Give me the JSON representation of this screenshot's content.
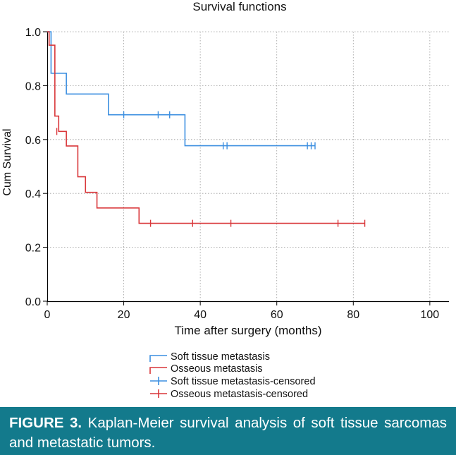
{
  "figure": {
    "label": "FIGURE 3.",
    "text": "Kaplan-Meier survival analysis of soft tissue sarcomas and metastatic tumors."
  },
  "colors": {
    "soft": "#3c8fe0",
    "osseous": "#d9373a",
    "caption_bg": "#137a8c"
  },
  "chart_data": {
    "type": "line",
    "title": "Survival functions",
    "xlabel": "Time after surgery (months)",
    "ylabel": "Cum Survival",
    "xlim": [
      0,
      105
    ],
    "ylim": [
      0,
      1.0
    ],
    "xticks": [
      0,
      20,
      40,
      60,
      80,
      100
    ],
    "yticks": [
      0.0,
      0.2,
      0.4,
      0.6,
      0.8,
      1.0
    ],
    "xtick_labels": [
      "0",
      "20",
      "40",
      "60",
      "80",
      "100"
    ],
    "ytick_labels": [
      "0.0",
      "0.2",
      "0.4",
      "0.6",
      "0.8",
      "1.0"
    ],
    "grid": true,
    "legend_position": "bottom",
    "legend": [
      "Soft tissue metastasis",
      "Osseous metastasis",
      "Soft tissue metastasis-censored",
      "Osseous metastasis-censored"
    ],
    "series": [
      {
        "name": "Soft tissue metastasis",
        "color_key": "soft",
        "steps": [
          [
            0,
            1.0
          ],
          [
            1,
            0.846
          ],
          [
            5,
            0.769
          ],
          [
            16,
            0.692
          ],
          [
            36,
            0.577
          ]
        ],
        "end": 70,
        "censored": [
          [
            20,
            0.692
          ],
          [
            29,
            0.692
          ],
          [
            32,
            0.692
          ],
          [
            46,
            0.577
          ],
          [
            47,
            0.577
          ],
          [
            68,
            0.577
          ],
          [
            69,
            0.577
          ],
          [
            70,
            0.577
          ]
        ]
      },
      {
        "name": "Osseous metastasis",
        "color_key": "osseous",
        "steps": [
          [
            0,
            1.0
          ],
          [
            0.5,
            0.95
          ],
          [
            2,
            0.687
          ],
          [
            3,
            0.63
          ],
          [
            5,
            0.576
          ],
          [
            8,
            0.462
          ],
          [
            10,
            0.404
          ],
          [
            13,
            0.346
          ],
          [
            24,
            0.289
          ]
        ],
        "end": 83,
        "censored": [
          [
            2.5,
            0.63
          ],
          [
            27,
            0.289
          ],
          [
            38,
            0.289
          ],
          [
            48,
            0.289
          ],
          [
            76,
            0.289
          ],
          [
            83,
            0.289
          ]
        ]
      }
    ]
  }
}
